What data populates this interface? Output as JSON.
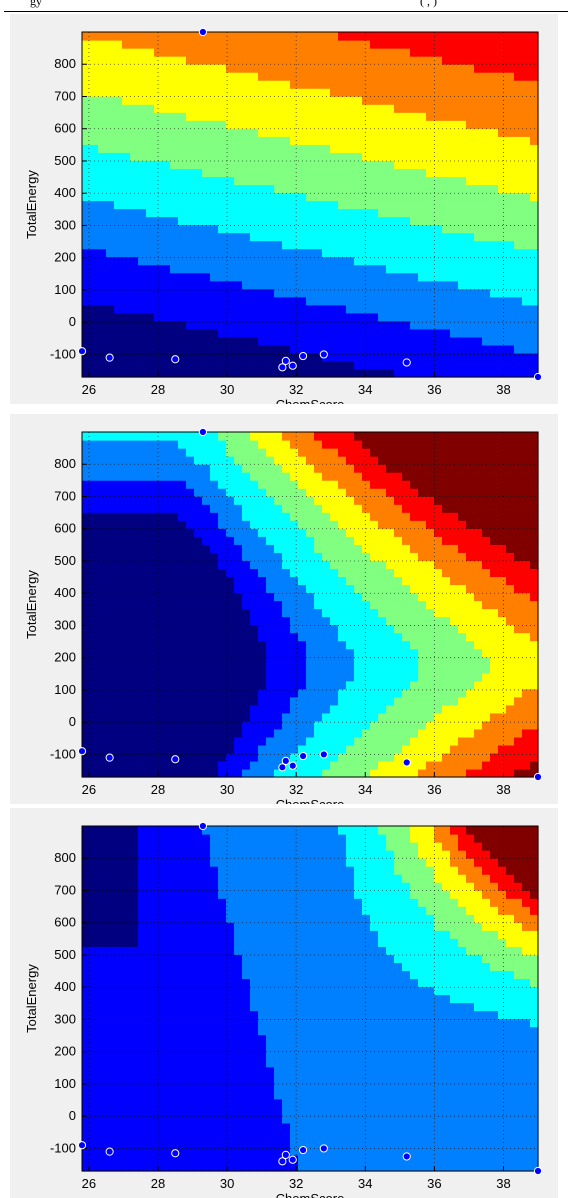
{
  "header": {
    "left_text": "gy",
    "right_text": "(         ,         )"
  },
  "chart_data": [
    {
      "type": "heatmap",
      "subtype": "filled-contour",
      "title": "",
      "xlabel": "ChemScore",
      "ylabel": "TotalEnergy",
      "xlim": [
        25.8,
        39.0
      ],
      "ylim": [
        -170,
        900
      ],
      "xticks": [
        26,
        28,
        30,
        32,
        34,
        36,
        38
      ],
      "yticks": [
        -100,
        0,
        100,
        200,
        300,
        400,
        500,
        600,
        700,
        800
      ],
      "grid": true,
      "colormap": "jet",
      "surface": {
        "form": "linear",
        "description": "parallel bands decreasing toward upper right",
        "levels_boundaries_at_x26": [
          885,
          790,
          630,
          465,
          300,
          140,
          -30
        ],
        "boundary_slope": -25
      },
      "points": {
        "color": "#0000ff",
        "x": [
          25.8,
          26.6,
          28.5,
          29.3,
          31.6,
          31.7,
          31.9,
          32.2,
          32.8,
          35.2,
          39.0
        ],
        "y": [
          -90,
          -110,
          -115,
          900,
          -140,
          -120,
          -135,
          -105,
          -100,
          -125,
          -170
        ]
      }
    },
    {
      "type": "heatmap",
      "subtype": "filled-contour",
      "title": "",
      "xlabel": "ChemScore",
      "ylabel": "TotalEnergy",
      "xlim": [
        25.8,
        39.0
      ],
      "ylim": [
        -170,
        900
      ],
      "xticks": [
        26,
        28,
        30,
        32,
        34,
        36,
        38
      ],
      "yticks": [
        -100,
        0,
        100,
        200,
        300,
        400,
        500,
        600,
        700,
        800
      ],
      "grid": true,
      "colormap": "jet",
      "surface": {
        "form": "quadratic",
        "description": "hyperbolic bands opening to the right, maximum at upper right"
      },
      "points": {
        "color": "#0000ff",
        "x": [
          25.8,
          26.6,
          28.5,
          29.3,
          31.6,
          31.7,
          31.9,
          32.2,
          32.8,
          35.2,
          39.0
        ],
        "y": [
          -90,
          -110,
          -115,
          900,
          -140,
          -120,
          -135,
          -105,
          -100,
          -125,
          -170
        ]
      }
    },
    {
      "type": "heatmap",
      "subtype": "filled-contour",
      "title": "",
      "xlabel": "ChemScore",
      "ylabel": "TotalEnergy",
      "xlim": [
        25.8,
        39.0
      ],
      "ylim": [
        -170,
        900
      ],
      "xticks": [
        26,
        28,
        30,
        32,
        34,
        36,
        38
      ],
      "yticks": [
        -100,
        0,
        100,
        200,
        300,
        400,
        500,
        600,
        700,
        800
      ],
      "grid": true,
      "colormap": "jet",
      "surface": {
        "form": "piecewise",
        "description": "flat low region with a diagonal break, bands rising toward upper right"
      },
      "points": {
        "color": "#0000ff",
        "x": [
          25.8,
          26.6,
          28.5,
          29.3,
          31.6,
          31.7,
          31.9,
          32.2,
          32.8,
          35.2,
          39.0
        ],
        "y": [
          -90,
          -110,
          -115,
          900,
          -140,
          -120,
          -135,
          -105,
          -100,
          -125,
          -170
        ]
      }
    }
  ]
}
